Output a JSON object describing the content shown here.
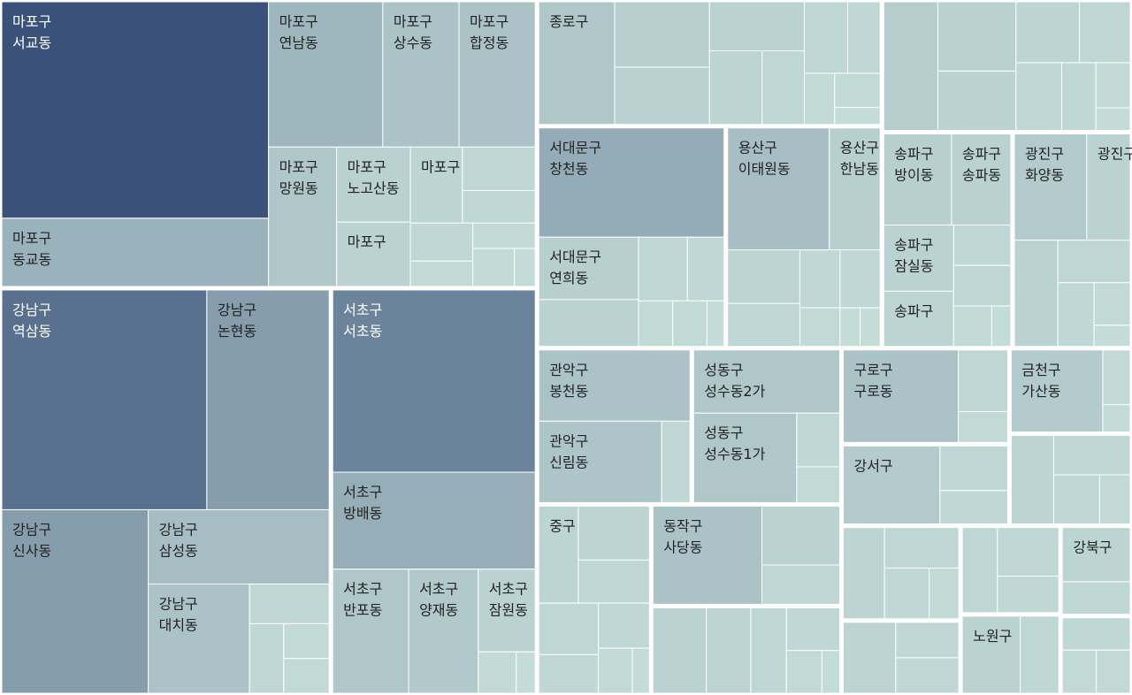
{
  "chart_data": {
    "type": "treemap",
    "color_low": "#c6ded9",
    "color_high": "#3a5279",
    "groups": [
      {
        "children": [
          {
            "label": [
              "마포구",
              "서교동"
            ],
            "value": 73
          },
          {
            "label": [
              "마포구",
              "동교동"
            ],
            "value": 23
          },
          {
            "label": [
              "마포구",
              "연남동"
            ],
            "value": 21
          },
          {
            "label": [
              "마포구",
              "상수동"
            ],
            "value": 14
          },
          {
            "label": [
              "마포구",
              "합정동"
            ],
            "value": 14
          },
          {
            "label": [
              "마포구",
              "망원동"
            ],
            "value": 12
          },
          {
            "label": [
              "마포구",
              "노고산동"
            ],
            "value": 7
          },
          {
            "label": [
              "마포구"
            ],
            "value": 6
          },
          {
            "label": [
              "마포구"
            ],
            "value": 5
          },
          {
            "label": null,
            "value": 4
          },
          {
            "label": null,
            "value": 3
          },
          {
            "label": null,
            "value": 3
          },
          {
            "label": null,
            "value": 2
          },
          {
            "label": null,
            "value": 2
          },
          {
            "label": null,
            "value": 2
          },
          {
            "label": null,
            "value": 1
          }
        ]
      },
      {
        "children": [
          {
            "label": [
              "강남구",
              "역삼동"
            ],
            "value": 57
          },
          {
            "label": [
              "강남구",
              "논현동"
            ],
            "value": 34
          },
          {
            "label": [
              "강남구",
              "신사동"
            ],
            "value": 34
          },
          {
            "label": [
              "강남구",
              "삼성동"
            ],
            "value": 17
          },
          {
            "label": [
              "강남구",
              "대치동"
            ],
            "value": 14
          },
          {
            "label": null,
            "value": 4
          },
          {
            "label": null,
            "value": 3
          },
          {
            "label": null,
            "value": 2
          },
          {
            "label": null,
            "value": 2
          }
        ]
      },
      {
        "children": [
          {
            "label": [
              "서초구",
              "서초동"
            ],
            "value": 47
          },
          {
            "label": [
              "서초구",
              "방배동"
            ],
            "value": 25
          },
          {
            "label": [
              "서초구",
              "반포동"
            ],
            "value": 12
          },
          {
            "label": [
              "서초구",
              "양재동"
            ],
            "value": 11
          },
          {
            "label": [
              "서초구",
              "잠원동"
            ],
            "value": 6
          },
          {
            "label": null,
            "value": 2
          },
          {
            "label": null,
            "value": 1
          }
        ]
      },
      {
        "children": [
          {
            "label": [
              "종로구"
            ],
            "value": 12
          },
          {
            "label": null,
            "value": 8
          },
          {
            "label": null,
            "value": 7
          },
          {
            "label": null,
            "value": 6
          },
          {
            "label": null,
            "value": 5
          },
          {
            "label": null,
            "value": 4
          },
          {
            "label": null,
            "value": 4
          },
          {
            "label": null,
            "value": 3
          },
          {
            "label": null,
            "value": 2
          },
          {
            "label": null,
            "value": 2
          },
          {
            "label": null,
            "value": 1
          }
        ]
      },
      {
        "children": [
          {
            "label": [
              "서대문구",
              "창천동"
            ],
            "value": 26
          },
          {
            "label": [
              "서대문구",
              "연희동"
            ],
            "value": 8
          },
          {
            "label": null,
            "value": 6
          },
          {
            "label": null,
            "value": 4
          },
          {
            "label": null,
            "value": 3
          },
          {
            "label": null,
            "value": 2
          },
          {
            "label": null,
            "value": 2
          },
          {
            "label": null,
            "value": 1
          }
        ]
      },
      {
        "children": [
          {
            "label": [
              "용산구",
              "이태원동"
            ],
            "value": 16
          },
          {
            "label": [
              "용산구",
              "한남동"
            ],
            "value": 8
          },
          {
            "label": null,
            "value": 5
          },
          {
            "label": null,
            "value": 4
          },
          {
            "label": null,
            "value": 3
          },
          {
            "label": null,
            "value": 3
          },
          {
            "label": null,
            "value": 2
          },
          {
            "label": null,
            "value": 1
          },
          {
            "label": null,
            "value": 1
          }
        ]
      },
      {
        "children": [
          {
            "label": null,
            "value": 9
          },
          {
            "label": null,
            "value": 7
          },
          {
            "label": null,
            "value": 6
          },
          {
            "label": null,
            "value": 5
          },
          {
            "label": null,
            "value": 4
          },
          {
            "label": null,
            "value": 4
          },
          {
            "label": null,
            "value": 3
          },
          {
            "label": null,
            "value": 2
          },
          {
            "label": null,
            "value": 1
          }
        ]
      },
      {
        "children": [
          {
            "label": [
              "송파구",
              "방이동"
            ],
            "value": 8
          },
          {
            "label": [
              "송파구",
              "송파동"
            ],
            "value": 7
          },
          {
            "label": [
              "송파구",
              "잠실동"
            ],
            "value": 6
          },
          {
            "label": [
              "송파구"
            ],
            "value": 5
          },
          {
            "label": null,
            "value": 3
          },
          {
            "label": null,
            "value": 3
          },
          {
            "label": null,
            "value": 2
          },
          {
            "label": null,
            "value": 1
          }
        ]
      },
      {
        "children": [
          {
            "label": [
              "광진구",
              "화양동"
            ],
            "value": 10
          },
          {
            "label": [
              "광진구"
            ],
            "value": 6
          },
          {
            "label": null,
            "value": 6
          },
          {
            "label": null,
            "value": 4
          },
          {
            "label": null,
            "value": 3
          },
          {
            "label": null,
            "value": 2
          },
          {
            "label": null,
            "value": 1
          }
        ]
      },
      {
        "children": [
          {
            "label": [
              "관악구",
              "봉천동"
            ],
            "value": 14
          },
          {
            "label": [
              "관악구",
              "신림동"
            ],
            "value": 13
          },
          {
            "label": null,
            "value": 3
          }
        ]
      },
      {
        "children": [
          {
            "label": [
              "성동구",
              "성수동2가"
            ],
            "value": 12
          },
          {
            "label": [
              "성동구",
              "성수동1가"
            ],
            "value": 12
          },
          {
            "label": null,
            "value": 3
          },
          {
            "label": null,
            "value": 2
          }
        ]
      },
      {
        "children": [
          {
            "label": [
              "중구"
            ],
            "value": 5
          },
          {
            "label": null,
            "value": 5
          },
          {
            "label": null,
            "value": 4
          },
          {
            "label": null,
            "value": 4
          },
          {
            "label": null,
            "value": 3
          },
          {
            "label": null,
            "value": 3
          },
          {
            "label": null,
            "value": 2
          },
          {
            "label": null,
            "value": 1
          }
        ]
      },
      {
        "children": [
          {
            "label": [
              "동작구",
              "사당동"
            ],
            "value": 14
          },
          {
            "label": null,
            "value": 6
          },
          {
            "label": null,
            "value": 4
          }
        ]
      },
      {
        "children": [
          {
            "label": null,
            "value": 6
          },
          {
            "label": null,
            "value": 5
          },
          {
            "label": null,
            "value": 4
          },
          {
            "label": null,
            "value": 3
          },
          {
            "label": null,
            "value": 2
          },
          {
            "label": null,
            "value": 1
          }
        ]
      },
      {
        "children": [
          {
            "label": [
              "구로구",
              "구로동"
            ],
            "value": 14
          },
          {
            "label": null,
            "value": 4
          },
          {
            "label": null,
            "value": 2
          }
        ]
      },
      {
        "children": [
          {
            "label": [
              "강서구"
            ],
            "value": 10
          },
          {
            "label": null,
            "value": 4
          },
          {
            "label": null,
            "value": 3
          }
        ]
      },
      {
        "children": [
          {
            "label": [
              "금천구",
              "가산동"
            ],
            "value": 10
          },
          {
            "label": null,
            "value": 2
          },
          {
            "label": null,
            "value": 1
          }
        ]
      },
      {
        "children": [
          {
            "label": null,
            "value": 5
          },
          {
            "label": null,
            "value": 4
          },
          {
            "label": null,
            "value": 3
          },
          {
            "label": null,
            "value": 2
          }
        ]
      },
      {
        "children": [
          {
            "label": null,
            "value": 5
          },
          {
            "label": null,
            "value": 4
          },
          {
            "label": null,
            "value": 3
          },
          {
            "label": null,
            "value": 2
          }
        ]
      },
      {
        "children": [
          {
            "label": null,
            "value": 5
          },
          {
            "label": null,
            "value": 3
          },
          {
            "label": null,
            "value": 3
          }
        ]
      },
      {
        "children": [
          {
            "label": null,
            "value": 4
          },
          {
            "label": null,
            "value": 4
          },
          {
            "label": null,
            "value": 3
          }
        ]
      },
      {
        "children": [
          {
            "label": [
              "노원구"
            ],
            "value": 6
          },
          {
            "label": null,
            "value": 4
          }
        ]
      },
      {
        "children": [
          {
            "label": [
              "강북구"
            ],
            "value": 5
          },
          {
            "label": null,
            "value": 3
          }
        ]
      },
      {
        "children": [
          {
            "label": null,
            "value": 3
          },
          {
            "label": null,
            "value": 2
          },
          {
            "label": null,
            "value": 2
          }
        ]
      }
    ]
  }
}
